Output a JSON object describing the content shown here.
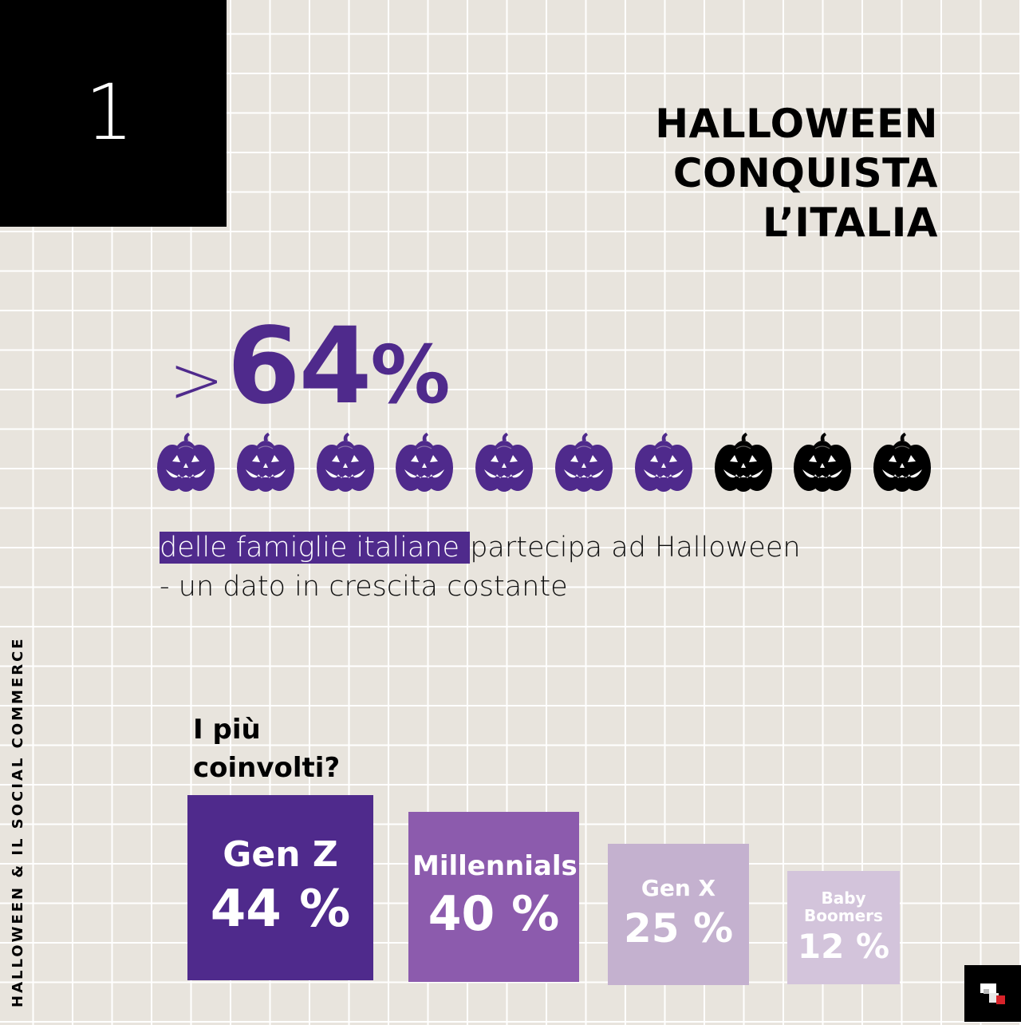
{
  "page": {
    "number": "1",
    "title_line1": "HALLOWEEN CONQUISTA",
    "title_line2": "L’ITALIA",
    "side_label": "HALLOWEEN & IL SOCIAL COMMERCE"
  },
  "stat": {
    "prefix": ">",
    "value": "64",
    "unit": "%",
    "pumpkins_total": 10,
    "pumpkins_highlighted": 7
  },
  "description": {
    "highlight": "delle famiglie italiane ",
    "rest_line1": "partecipa ad Halloween",
    "line2": "- un dato in crescita costante"
  },
  "question": {
    "line1": "I più",
    "line2": "coinvolti?"
  },
  "colors": {
    "purple_dark": "#4f2a8c",
    "purple_mid": "#8c5bad",
    "purple_light": "#c4b1cf",
    "purple_pale": "#d3c4db",
    "pumpkin_off": "#000000",
    "background": "#e8e4dd"
  },
  "chart_data": {
    "type": "bar",
    "categories": [
      "Gen Z",
      "Millennials",
      "Gen X",
      "Baby Boomers"
    ],
    "values": [
      44,
      40,
      25,
      12
    ],
    "labels": [
      "44 %",
      "40 %",
      "25 %",
      "12 %"
    ],
    "series": [
      {
        "values": [
          44,
          40,
          25,
          12
        ]
      }
    ]
  },
  "icons": {
    "pumpkin": "jack-o-lantern-icon",
    "logo": "brand-logo-icon"
  }
}
